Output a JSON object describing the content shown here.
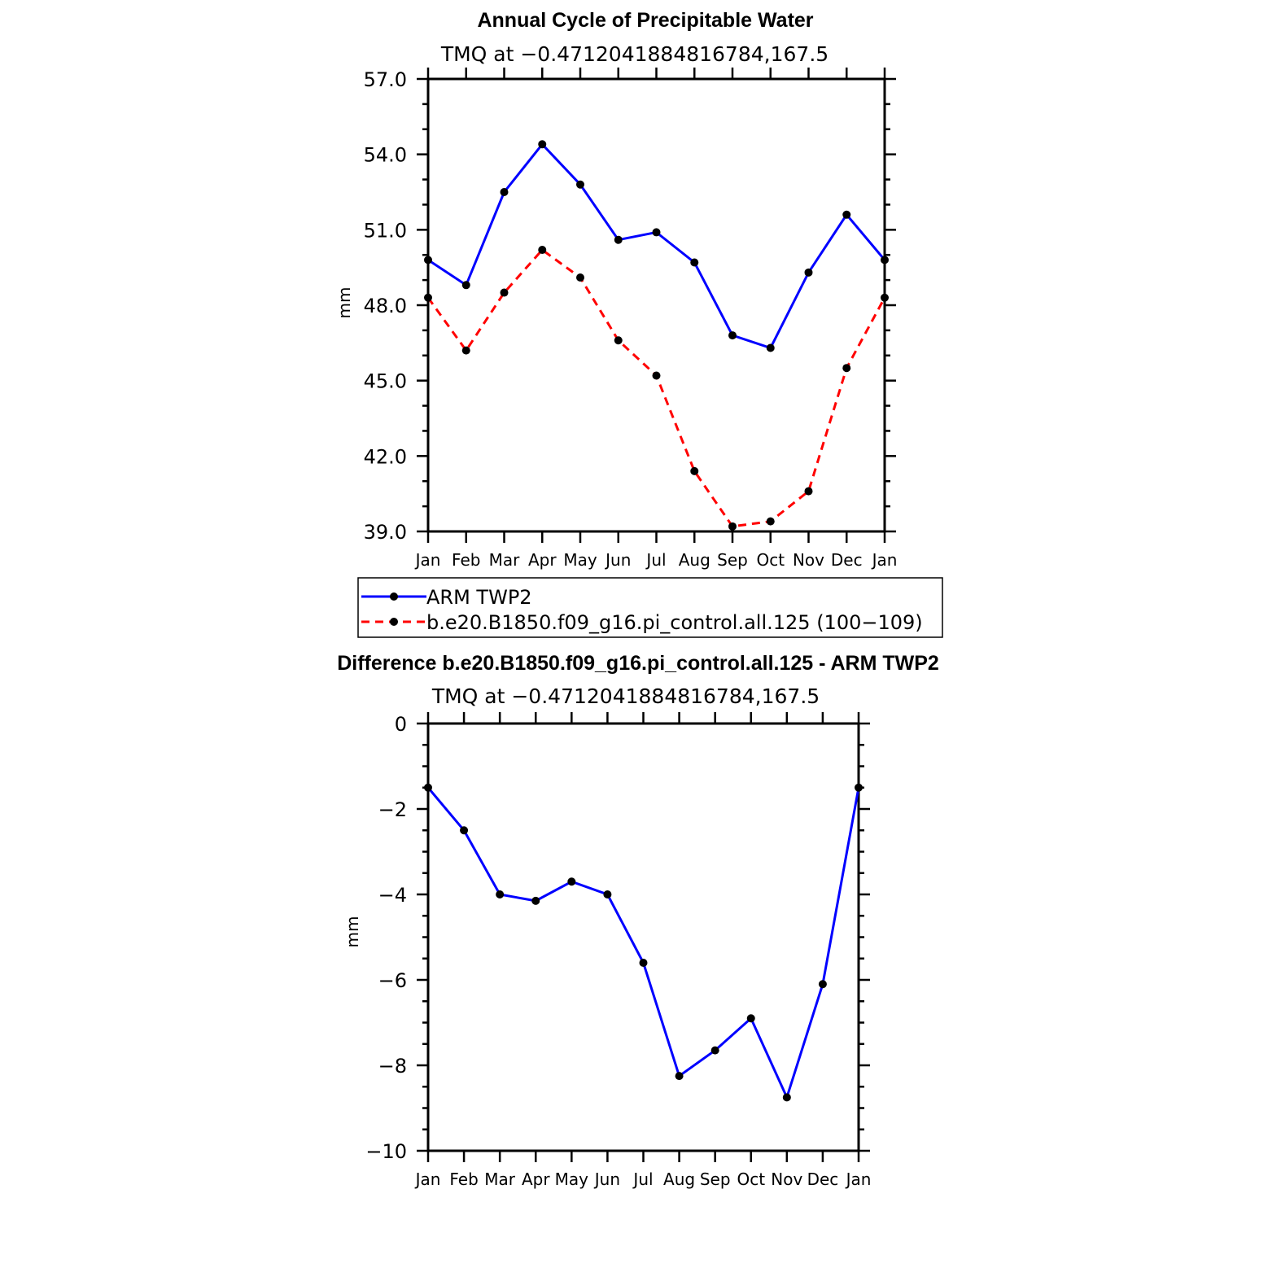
{
  "chart_data": [
    {
      "type": "line",
      "title": "Annual Cycle of Precipitable Water",
      "subtitle": "TMQ at −0.4712041884816784,167.5",
      "ylabel": "mm",
      "ylim": [
        39.0,
        57.0
      ],
      "yticks": [
        "39.0",
        "42.0",
        "45.0",
        "48.0",
        "51.0",
        "54.0",
        "57.0"
      ],
      "categories": [
        "Jan",
        "Feb",
        "Mar",
        "Apr",
        "May",
        "Jun",
        "Jul",
        "Aug",
        "Sep",
        "Oct",
        "Nov",
        "Dec",
        "Jan"
      ],
      "series": [
        {
          "name": "ARM TWP2",
          "color": "#0000ff",
          "dash": "solid",
          "values": [
            49.8,
            48.8,
            52.5,
            54.4,
            52.8,
            50.6,
            50.9,
            49.7,
            46.8,
            46.3,
            49.3,
            51.6,
            49.8
          ]
        },
        {
          "name": "b.e20.B1850.f09_g16.pi_control.all.125 (100−109)",
          "color": "#ff0000",
          "dash": "dashed",
          "values": [
            48.3,
            46.2,
            48.5,
            50.2,
            49.1,
            46.6,
            45.2,
            41.4,
            39.2,
            39.4,
            40.6,
            45.5,
            48.3
          ]
        }
      ],
      "legend": "below"
    },
    {
      "type": "line",
      "title": "Difference b.e20.B1850.f09_g16.pi_control.all.125 - ARM TWP2",
      "subtitle": "TMQ at −0.4712041884816784,167.5",
      "ylabel": "mm",
      "ylim": [
        -10,
        0
      ],
      "yticks": [
        "−10",
        "−8",
        "−6",
        "−4",
        "−2",
        "0"
      ],
      "categories": [
        "Jan",
        "Feb",
        "Mar",
        "Apr",
        "May",
        "Jun",
        "Jul",
        "Aug",
        "Sep",
        "Oct",
        "Nov",
        "Dec",
        "Jan"
      ],
      "series": [
        {
          "color": "#0000ff",
          "dash": "solid",
          "values": [
            -1.5,
            -2.5,
            -4.0,
            -4.15,
            -3.7,
            -4.0,
            -5.6,
            -8.25,
            -7.65,
            -6.9,
            -8.75,
            -6.1,
            -1.5
          ]
        }
      ]
    }
  ]
}
